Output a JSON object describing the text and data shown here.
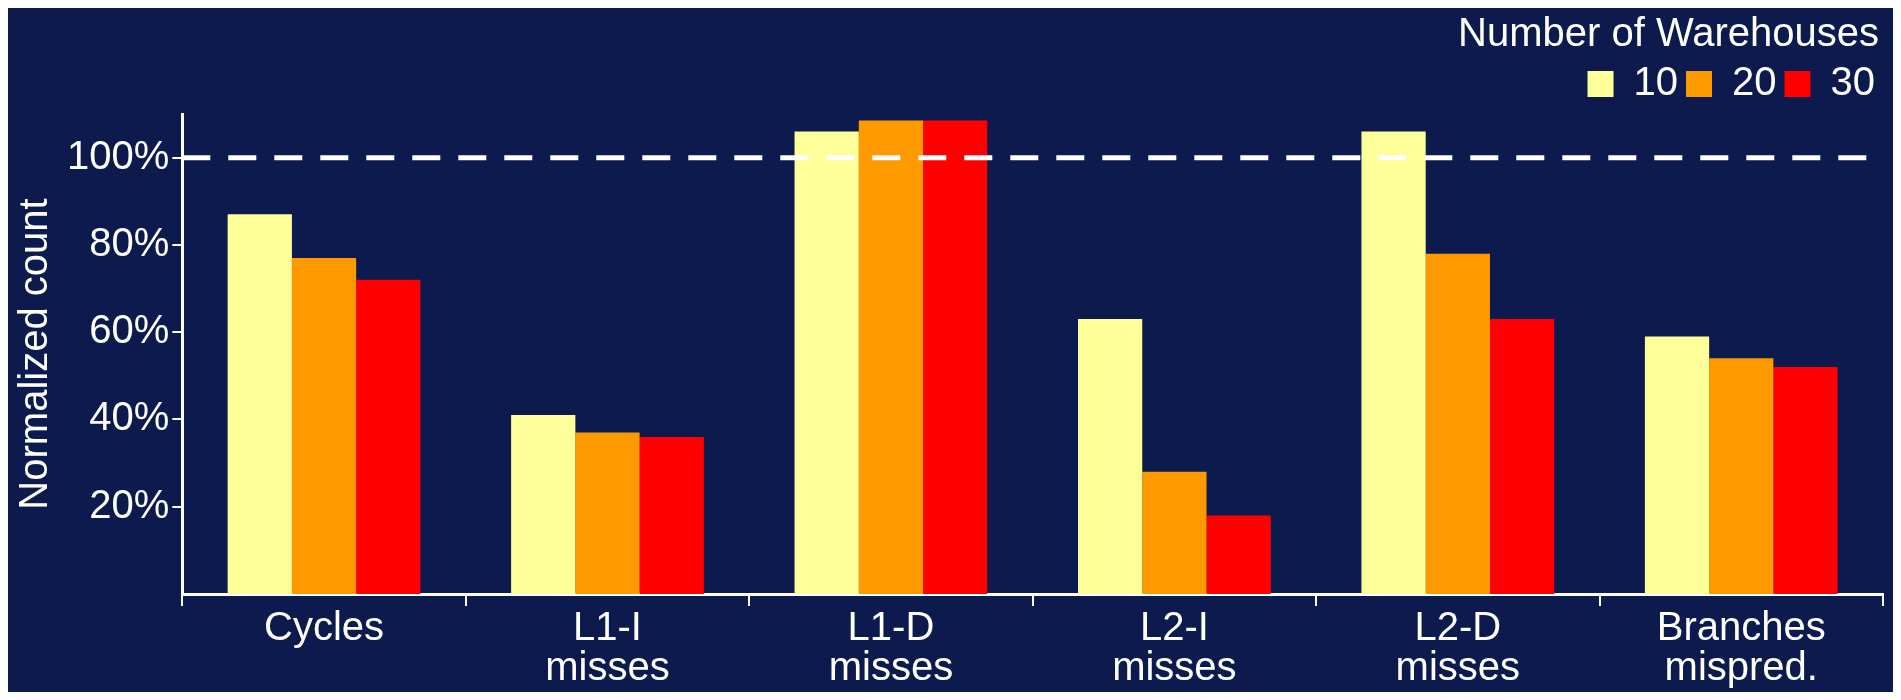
{
  "chart_data": {
    "type": "bar",
    "ylabel": "Normalized count",
    "legend_title": "Number of Warehouses",
    "categories": [
      "Cycles",
      "L1-I misses",
      "L1-D misses",
      "L2-I misses",
      "L2-D misses",
      "Branches mispred."
    ],
    "series": [
      {
        "name": "10",
        "color": "#ffff99",
        "values": [
          87,
          41,
          106,
          63,
          106,
          59
        ]
      },
      {
        "name": "20",
        "color": "#ff9900",
        "values": [
          77,
          37,
          108.5,
          28,
          78,
          54
        ]
      },
      {
        "name": "30",
        "color": "#ff0000",
        "values": [
          72,
          36,
          108.5,
          18,
          63,
          52
        ]
      }
    ],
    "ylim": [
      0,
      110
    ],
    "yticks": [
      {
        "value": 20,
        "label": "20%"
      },
      {
        "value": 40,
        "label": "40%"
      },
      {
        "value": 60,
        "label": "60%"
      },
      {
        "value": 80,
        "label": "80%"
      },
      {
        "value": 100,
        "label": "100%"
      }
    ],
    "ref_lines": [
      {
        "axis": "y",
        "value": 100,
        "label": null,
        "color": "#ffffff",
        "line_style": "dashed"
      }
    ],
    "grid": false,
    "legend": "top right"
  }
}
